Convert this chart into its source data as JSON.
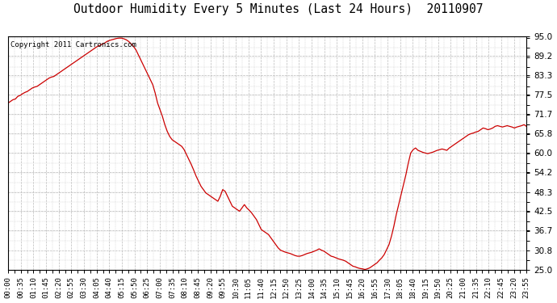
{
  "title": "Outdoor Humidity Every 5 Minutes (Last 24 Hours)  20110907",
  "copyright": "Copyright 2011 Cartronics.com",
  "background_color": "#ffffff",
  "plot_bg_color": "#ffffff",
  "line_color": "#cc0000",
  "grid_color": "#bbbbbb",
  "ylim": [
    25.0,
    95.0
  ],
  "yticks": [
    25.0,
    30.8,
    36.7,
    42.5,
    48.3,
    54.2,
    60.0,
    65.8,
    71.7,
    77.5,
    83.3,
    89.2,
    95.0
  ],
  "xtick_labels": [
    "00:00",
    "00:35",
    "01:10",
    "01:45",
    "02:20",
    "02:55",
    "03:30",
    "04:05",
    "04:40",
    "05:15",
    "05:50",
    "06:25",
    "07:00",
    "07:35",
    "08:10",
    "08:45",
    "09:20",
    "09:55",
    "10:30",
    "11:05",
    "11:40",
    "12:15",
    "12:50",
    "13:25",
    "14:00",
    "14:35",
    "15:10",
    "15:45",
    "16:20",
    "16:55",
    "17:30",
    "18:05",
    "18:40",
    "19:15",
    "19:50",
    "20:25",
    "21:00",
    "21:35",
    "22:10",
    "22:45",
    "23:20",
    "23:55"
  ],
  "humidity_values": [
    75.0,
    75.5,
    76.0,
    76.2,
    77.0,
    77.3,
    77.8,
    78.2,
    78.5,
    79.0,
    79.5,
    79.8,
    80.0,
    80.5,
    81.0,
    81.5,
    82.0,
    82.5,
    82.8,
    83.0,
    83.5,
    84.0,
    84.5,
    85.0,
    85.5,
    86.0,
    86.5,
    87.0,
    87.5,
    88.0,
    88.5,
    89.0,
    89.5,
    90.0,
    90.5,
    91.0,
    91.5,
    92.0,
    92.3,
    92.7,
    93.0,
    93.5,
    93.8,
    94.0,
    94.2,
    94.4,
    94.5,
    94.5,
    94.3,
    94.0,
    93.5,
    92.8,
    92.0,
    91.0,
    89.5,
    88.0,
    86.5,
    85.0,
    83.5,
    82.0,
    80.5,
    78.0,
    75.0,
    73.0,
    71.0,
    68.5,
    66.5,
    65.0,
    64.0,
    63.5,
    63.0,
    62.5,
    62.0,
    61.0,
    59.5,
    58.0,
    56.5,
    54.8,
    53.0,
    51.5,
    50.0,
    49.0,
    48.0,
    47.5,
    47.0,
    46.5,
    46.0,
    45.5,
    47.0,
    49.0,
    48.5,
    47.0,
    45.5,
    44.0,
    43.5,
    43.0,
    42.5,
    43.5,
    44.5,
    43.5,
    42.8,
    42.0,
    41.0,
    40.0,
    38.5,
    37.0,
    36.5,
    36.0,
    35.5,
    34.5,
    33.5,
    32.5,
    31.5,
    30.8,
    30.5,
    30.2,
    30.0,
    29.8,
    29.5,
    29.2,
    29.0,
    29.0,
    29.2,
    29.5,
    29.8,
    30.0,
    30.2,
    30.5,
    30.8,
    31.2,
    30.8,
    30.5,
    30.0,
    29.5,
    29.0,
    28.8,
    28.5,
    28.2,
    28.0,
    27.8,
    27.5,
    27.0,
    26.5,
    26.0,
    25.8,
    25.5,
    25.3,
    25.2,
    25.0,
    25.2,
    25.5,
    26.0,
    26.5,
    27.0,
    27.8,
    28.5,
    29.5,
    31.0,
    32.5,
    35.0,
    38.0,
    41.5,
    44.5,
    47.5,
    50.5,
    53.5,
    57.0,
    60.0,
    61.0,
    61.5,
    60.8,
    60.5,
    60.2,
    60.0,
    59.8,
    60.0,
    60.2,
    60.5,
    60.8,
    61.0,
    61.2,
    61.0,
    60.8,
    61.5,
    62.0,
    62.5,
    63.0,
    63.5,
    64.0,
    64.5,
    65.0,
    65.5,
    65.8,
    66.0,
    66.3,
    66.5,
    67.0,
    67.5,
    67.3,
    67.0,
    67.2,
    67.5,
    68.0,
    68.2,
    68.0,
    67.8,
    68.0,
    68.2,
    68.0,
    67.8,
    67.5,
    67.8,
    68.0,
    68.2,
    68.5,
    68.0
  ]
}
